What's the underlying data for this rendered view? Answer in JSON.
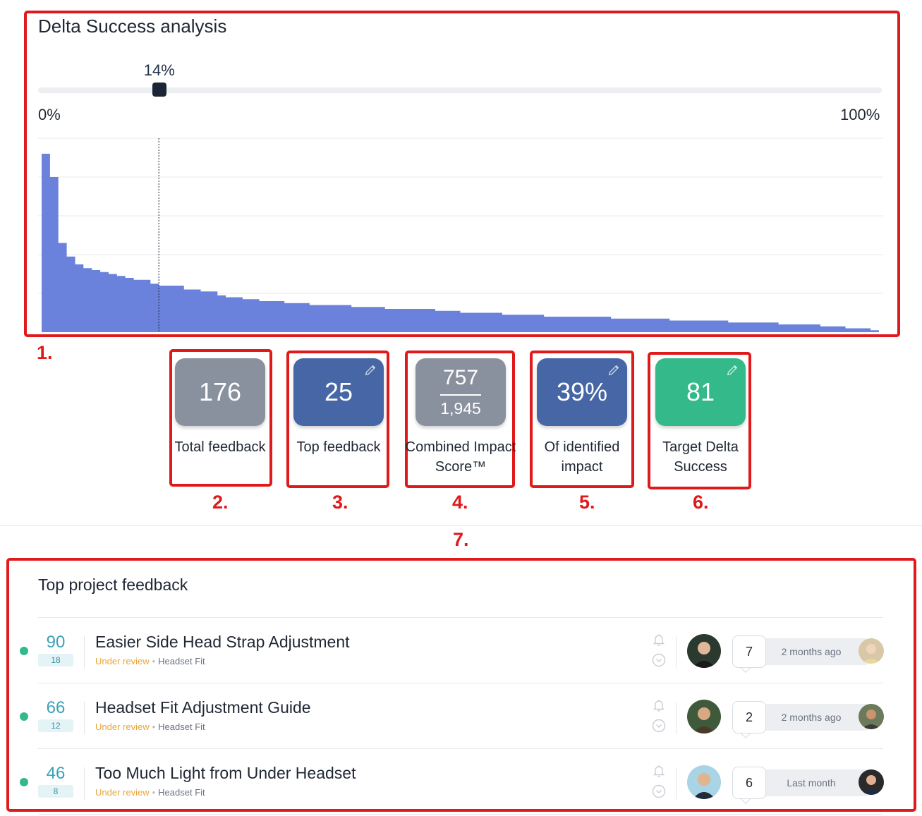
{
  "panel": {
    "title": "Delta Success analysis",
    "slider": {
      "value_label": "14%",
      "value": 0.14,
      "min_label": "0%",
      "max_label": "100%"
    },
    "chart_data": {
      "type": "area",
      "color": "#6a82dc",
      "marker_x": 0.14,
      "ylim": [
        0,
        100
      ],
      "values": [
        92,
        80,
        46,
        39,
        35,
        33,
        32,
        31,
        30,
        29,
        28,
        27,
        27,
        25,
        24,
        24,
        24,
        22,
        22,
        21,
        21,
        19,
        18,
        18,
        17,
        17,
        16,
        16,
        16,
        15,
        15,
        15,
        14,
        14,
        14,
        14,
        14,
        13,
        13,
        13,
        13,
        12,
        12,
        12,
        12,
        12,
        12,
        11,
        11,
        11,
        10,
        10,
        10,
        10,
        10,
        9,
        9,
        9,
        9,
        9,
        8,
        8,
        8,
        8,
        8,
        8,
        8,
        8,
        7,
        7,
        7,
        7,
        7,
        7,
        7,
        6,
        6,
        6,
        6,
        6,
        6,
        6,
        5,
        5,
        5,
        5,
        5,
        5,
        4,
        4,
        4,
        4,
        4,
        3,
        3,
        3,
        2,
        2,
        2,
        1
      ]
    }
  },
  "stats": [
    {
      "value": "176",
      "label": "Total feedback",
      "color": "#8a919e",
      "editable": false
    },
    {
      "value": "25",
      "label": "Top feedback",
      "color": "#4766a6",
      "editable": true
    },
    {
      "numerator": "757",
      "denominator": "1,945",
      "label": "Combined Impact Score™",
      "color": "#8a919e",
      "editable": false
    },
    {
      "value": "39%",
      "label": "Of identified impact",
      "color": "#4766a6",
      "editable": true
    },
    {
      "value": "81",
      "label": "Target Delta Success",
      "color": "#33b98a",
      "editable": true
    }
  ],
  "annotations": [
    "1.",
    "2.",
    "3.",
    "4.",
    "5.",
    "6.",
    "7."
  ],
  "feedback_section": {
    "title": "Top project feedback",
    "items": [
      {
        "score": "90",
        "votes": "18",
        "title": "Easier Side Head Strap Adjustment",
        "status": "Under review",
        "category": "Headset Fit",
        "comments": "7",
        "time": "2 months ago"
      },
      {
        "score": "66",
        "votes": "12",
        "title": "Headset Fit Adjustment Guide",
        "status": "Under review",
        "category": "Headset Fit",
        "comments": "2",
        "time": "2 months ago"
      },
      {
        "score": "46",
        "votes": "8",
        "title": "Too Much Light from Under Headset",
        "status": "Under review",
        "category": "Headset Fit",
        "comments": "6",
        "time": "Last month"
      }
    ]
  },
  "icons": [
    "pencil-icon",
    "bell-icon",
    "chevron-down-circle-icon",
    "avatar"
  ]
}
